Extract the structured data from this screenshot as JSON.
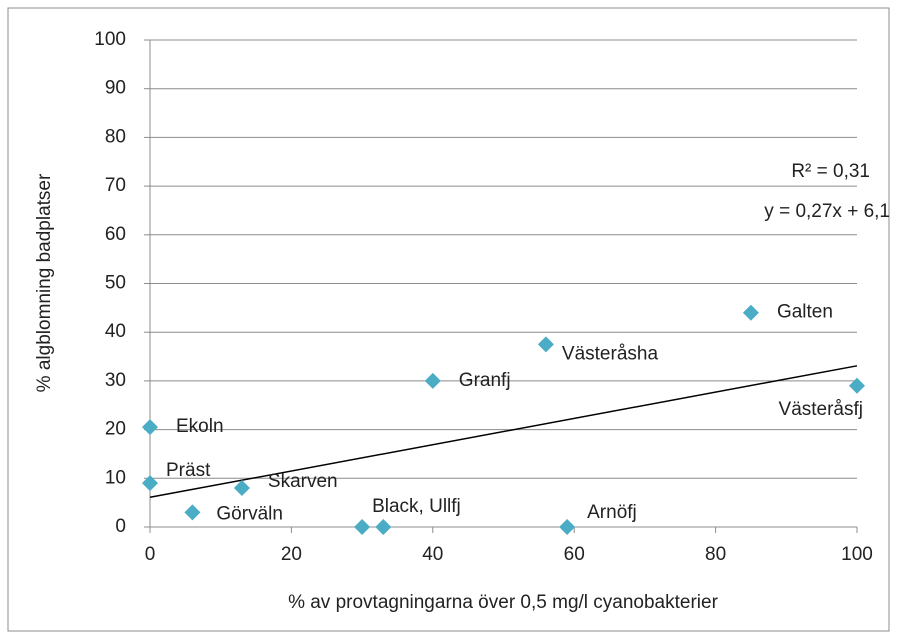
{
  "chart_data": {
    "type": "scatter",
    "x_label": "% av provtagningarna över 0,5 mg/l cyanobakterier",
    "y_label": "% algblomning badplatser",
    "series": [
      {
        "color": "#4bacc6",
        "labels": [
          "Ekoln",
          "Präst",
          "Görväln",
          "Skarven",
          "Black, Ullfj",
          null,
          "Arnöfj",
          "Granfj",
          "Västeråsha",
          "Galten",
          "Västeråsfj"
        ],
        "x": [
          0,
          0,
          6,
          13,
          30,
          33,
          59,
          40,
          56,
          85,
          100
        ],
        "values": [
          20.5,
          9,
          3,
          8,
          0,
          0,
          0,
          30,
          37.5,
          44,
          29
        ]
      }
    ],
    "trendline": {
      "slope": 0.27,
      "intercept": 6.1,
      "color": "#000000"
    },
    "annotations": [
      "R² = 0,31",
      "y = 0,27x + 6,1"
    ],
    "xlim": [
      0,
      100
    ],
    "xticks": [
      0,
      20,
      40,
      60,
      80,
      100
    ],
    "ylim": [
      0,
      100
    ],
    "yticks": [
      0,
      10,
      20,
      30,
      40,
      50,
      60,
      70,
      80,
      90,
      100
    ],
    "grid": true
  }
}
